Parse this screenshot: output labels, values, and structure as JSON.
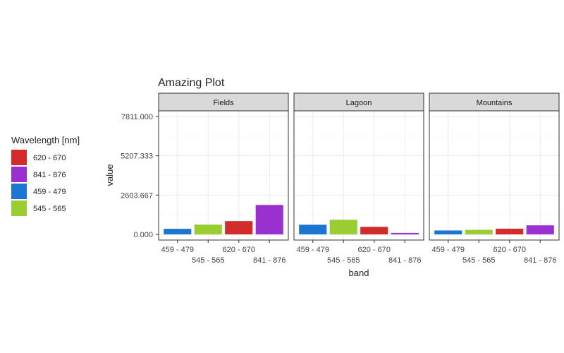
{
  "chart_data": {
    "type": "bar",
    "title": "Amazing Plot",
    "xlabel": "band",
    "ylabel": "value",
    "ylim": [
      0,
      7811
    ],
    "y_ticks": [
      "0.000",
      "2603.667",
      "5207.333",
      "7811.000"
    ],
    "y_tick_values": [
      0,
      2603.667,
      5207.333,
      7811.0
    ],
    "categories": [
      "459 - 479",
      "545 - 565",
      "620 - 670",
      "841 - 876"
    ],
    "panels": [
      {
        "name": "Fields",
        "values": [
          370,
          650,
          880,
          1950
        ]
      },
      {
        "name": "Lagoon",
        "values": [
          640,
          970,
          500,
          100
        ]
      },
      {
        "name": "Mountains",
        "values": [
          260,
          300,
          380,
          600
        ]
      }
    ],
    "grid": true,
    "legend": {
      "title": "Wavelength [nm]",
      "placement": "left",
      "entries": [
        {
          "label": "620 - 670",
          "color": "#D22B2B"
        },
        {
          "label": "841 - 876",
          "color": "#9B30D0"
        },
        {
          "label": "459 - 479",
          "color": "#1C75D1"
        },
        {
          "label": "545 - 565",
          "color": "#9ACD32"
        }
      ]
    },
    "category_colors": [
      "#1C75D1",
      "#9ACD32",
      "#D22B2B",
      "#9B30D0"
    ]
  }
}
